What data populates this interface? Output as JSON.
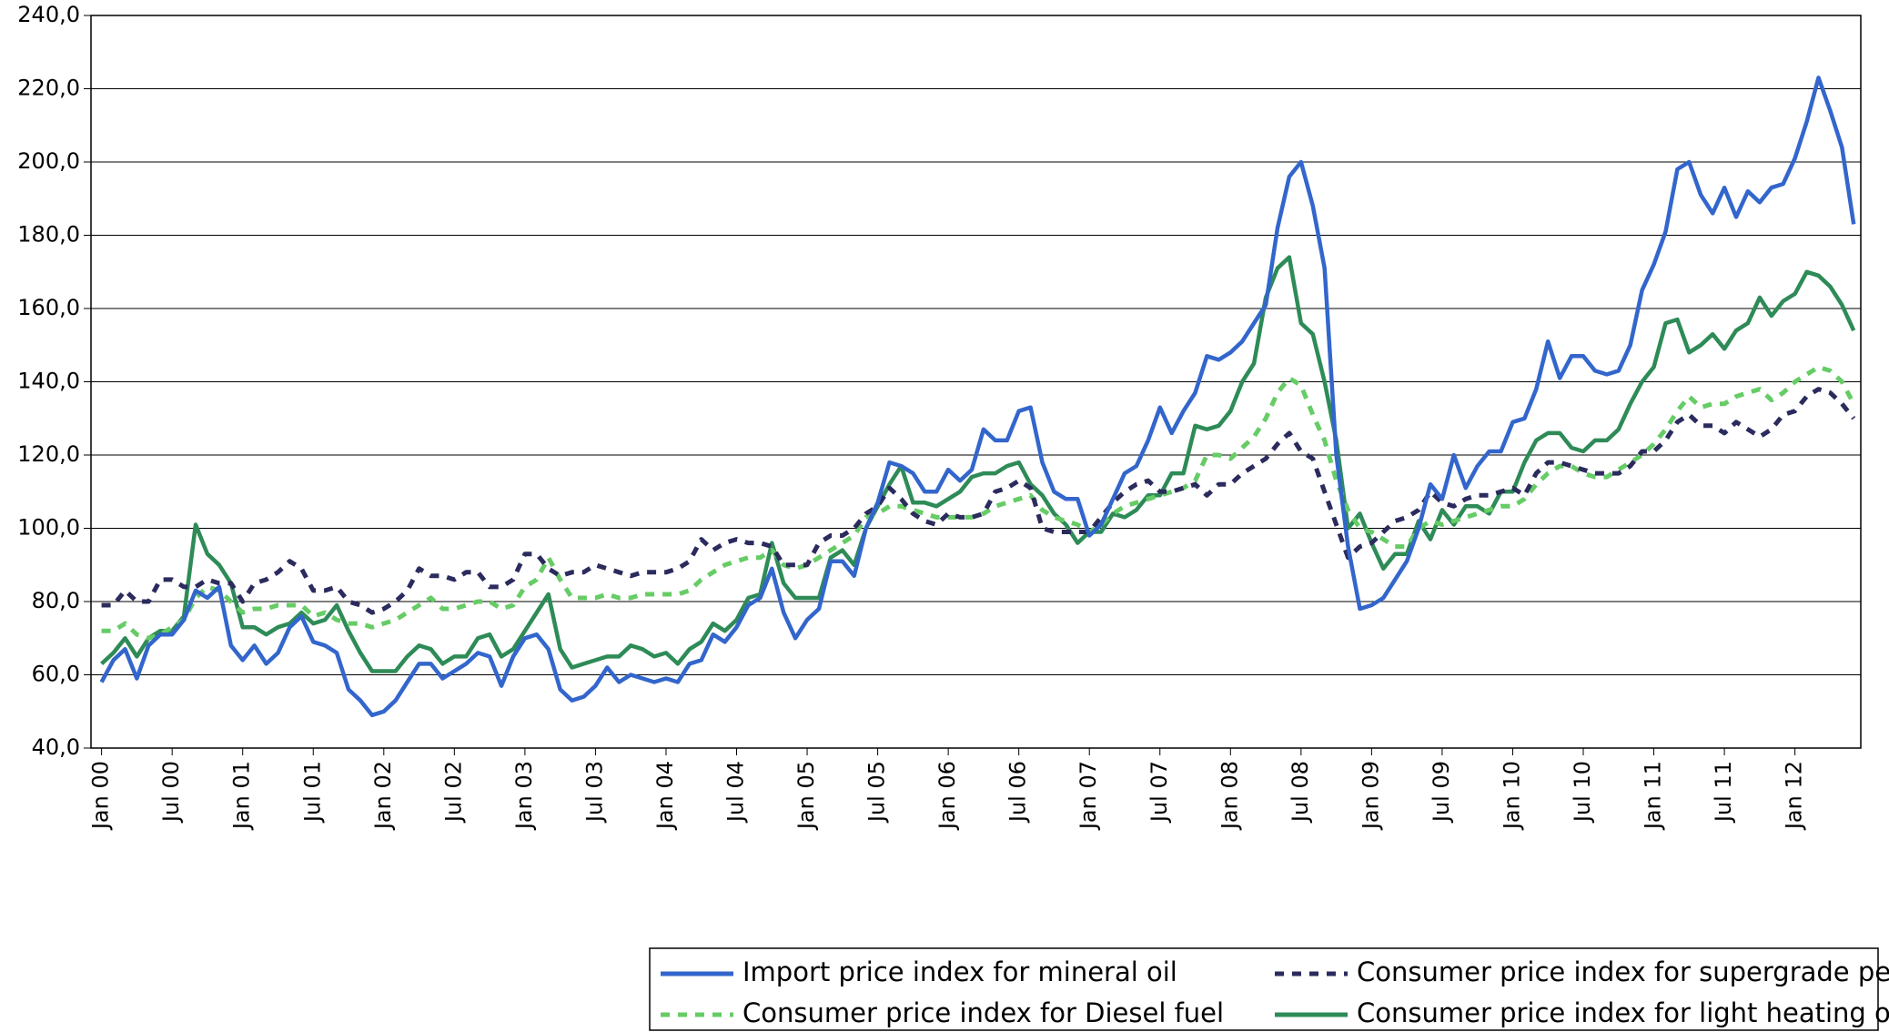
{
  "chart_data": {
    "type": "line",
    "categories": [
      "Jan 00",
      null,
      null,
      null,
      null,
      null,
      "Jul 00",
      null,
      null,
      null,
      null,
      null,
      "Jan 01",
      null,
      null,
      null,
      null,
      null,
      "Jul 01",
      null,
      null,
      null,
      null,
      null,
      "Jan 02",
      null,
      null,
      null,
      null,
      null,
      "Jul 02",
      null,
      null,
      null,
      null,
      null,
      "Jan 03",
      null,
      null,
      null,
      null,
      null,
      "Jul 03",
      null,
      null,
      null,
      null,
      null,
      "Jan 04",
      null,
      null,
      null,
      null,
      null,
      "Jul 04",
      null,
      null,
      null,
      null,
      null,
      "Jan 05",
      null,
      null,
      null,
      null,
      null,
      "Jul 05",
      null,
      null,
      null,
      null,
      null,
      "Jan 06",
      null,
      null,
      null,
      null,
      null,
      "Jul 06",
      null,
      null,
      null,
      null,
      null,
      "Jan 07",
      null,
      null,
      null,
      null,
      null,
      "Jul 07",
      null,
      null,
      null,
      null,
      null,
      "Jan 08",
      null,
      null,
      null,
      null,
      null,
      "Jul 08",
      null,
      null,
      null,
      null,
      null,
      "Jan 09",
      null,
      null,
      null,
      null,
      null,
      "Jul 09",
      null,
      null,
      null,
      null,
      null,
      "Jan 10",
      null,
      null,
      null,
      null,
      null,
      "Jul 10",
      null,
      null,
      null,
      null,
      null,
      "Jan 11",
      null,
      null,
      null,
      null,
      null,
      "Jul 11",
      null,
      null,
      null,
      null,
      null,
      "Jan 12",
      null,
      null,
      null,
      null,
      null
    ],
    "series": [
      {
        "name": "Import price index for mineral oil",
        "color": "#3366cc",
        "style": "solid",
        "values": [
          58,
          64,
          67,
          59,
          68,
          71,
          71,
          75,
          83,
          81,
          84,
          68,
          64,
          68,
          63,
          66,
          73,
          76,
          69,
          68,
          66,
          56,
          53,
          49,
          50,
          53,
          58,
          63,
          63,
          59,
          61,
          63,
          66,
          65,
          57,
          65,
          70,
          71,
          67,
          56,
          53,
          54,
          57,
          62,
          58,
          60,
          59,
          58,
          59,
          58,
          63,
          64,
          71,
          69,
          73,
          79,
          81,
          89,
          77,
          70,
          75,
          78,
          91,
          91,
          87,
          100,
          107,
          118,
          117,
          115,
          110,
          110,
          116,
          113,
          116,
          127,
          124,
          124,
          132,
          133,
          118,
          110,
          108,
          108,
          98,
          101,
          108,
          115,
          117,
          124,
          133,
          126,
          132,
          137,
          147,
          146,
          148,
          151,
          156,
          161,
          182,
          196,
          200,
          188,
          171,
          120,
          95,
          78,
          79,
          81,
          86,
          91,
          100,
          112,
          108,
          120,
          111,
          117,
          121,
          121,
          129,
          130,
          138,
          151,
          141,
          147,
          147,
          143,
          142,
          143,
          150,
          165,
          172,
          181,
          198,
          200,
          191,
          186,
          193,
          185,
          192,
          189,
          193,
          194,
          201,
          211,
          223,
          214,
          204,
          183
        ]
      },
      {
        "name": "Consumer price index for supergrade petrol",
        "color": "#2b2b5e",
        "style": "dashed",
        "values": [
          79,
          79,
          83,
          80,
          80,
          86,
          86,
          84,
          84,
          86,
          85,
          85,
          80,
          85,
          86,
          88,
          91,
          89,
          83,
          83,
          84,
          80,
          79,
          77,
          78,
          80,
          83,
          89,
          87,
          87,
          86,
          88,
          88,
          84,
          84,
          86,
          93,
          93,
          89,
          87,
          88,
          88,
          90,
          89,
          88,
          87,
          88,
          88,
          88,
          89,
          91,
          97,
          94,
          96,
          97,
          96,
          96,
          95,
          90,
          90,
          90,
          96,
          98,
          98,
          100,
          104,
          106,
          111,
          108,
          104,
          102,
          101,
          104,
          103,
          103,
          104,
          110,
          111,
          113,
          111,
          100,
          99,
          99,
          99,
          99,
          103,
          107,
          110,
          112,
          113,
          110,
          110,
          111,
          112,
          109,
          112,
          112,
          115,
          117,
          119,
          123,
          126,
          121,
          119,
          110,
          101,
          92,
          95,
          96,
          99,
          102,
          103,
          105,
          110,
          107,
          106,
          108,
          109,
          109,
          110,
          111,
          109,
          115,
          118,
          118,
          117,
          116,
          115,
          115,
          115,
          117,
          121,
          121,
          124,
          129,
          131,
          128,
          128,
          126,
          129,
          127,
          125,
          127,
          131,
          132,
          136,
          138,
          137,
          134,
          130
        ]
      },
      {
        "name": "Consumer price index for Diesel fuel",
        "color": "#66cc66",
        "style": "dashed",
        "values": [
          72,
          72,
          74,
          71,
          70,
          71,
          73,
          75,
          81,
          84,
          83,
          80,
          77,
          78,
          78,
          79,
          79,
          79,
          76,
          77,
          75,
          74,
          74,
          73,
          74,
          75,
          77,
          79,
          81,
          78,
          78,
          79,
          80,
          80,
          78,
          79,
          84,
          86,
          92,
          86,
          81,
          81,
          81,
          82,
          81,
          81,
          82,
          82,
          82,
          82,
          83,
          86,
          88,
          90,
          91,
          92,
          92,
          94,
          90,
          89,
          90,
          92,
          94,
          96,
          98,
          103,
          104,
          106,
          106,
          105,
          104,
          103,
          103,
          103,
          103,
          104,
          106,
          107,
          108,
          109,
          105,
          103,
          102,
          101,
          99,
          101,
          104,
          106,
          107,
          108,
          109,
          110,
          111,
          113,
          120,
          120,
          119,
          122,
          125,
          130,
          137,
          141,
          139,
          131,
          124,
          113,
          105,
          100,
          99,
          97,
          95,
          95,
          100,
          102,
          101,
          102,
          103,
          104,
          105,
          106,
          106,
          108,
          112,
          115,
          117,
          117,
          115,
          114,
          114,
          116,
          118,
          120,
          123,
          127,
          132,
          136,
          133,
          134,
          134,
          136,
          137,
          138,
          135,
          137,
          140,
          142,
          144,
          143,
          140,
          134
        ]
      },
      {
        "name": "Consumer price index for light heating oil",
        "color": "#2e8b57",
        "style": "solid",
        "values": [
          63,
          66,
          70,
          65,
          70,
          72,
          72,
          76,
          101,
          93,
          90,
          85,
          73,
          73,
          71,
          73,
          74,
          77,
          74,
          75,
          79,
          72,
          66,
          61,
          61,
          61,
          65,
          68,
          67,
          63,
          65,
          65,
          70,
          71,
          65,
          67,
          72,
          77,
          82,
          67,
          62,
          63,
          64,
          65,
          65,
          68,
          67,
          65,
          66,
          63,
          67,
          69,
          74,
          72,
          75,
          81,
          82,
          96,
          85,
          81,
          81,
          81,
          92,
          94,
          90,
          100,
          106,
          112,
          117,
          107,
          107,
          106,
          108,
          110,
          114,
          115,
          115,
          117,
          118,
          112,
          109,
          104,
          101,
          96,
          99,
          99,
          104,
          103,
          105,
          109,
          109,
          115,
          115,
          128,
          127,
          128,
          132,
          140,
          145,
          163,
          171,
          174,
          156,
          153,
          140,
          124,
          100,
          104,
          96,
          89,
          93,
          93,
          102,
          97,
          105,
          101,
          106,
          106,
          104,
          110,
          110,
          118,
          124,
          126,
          126,
          122,
          121,
          124,
          124,
          127,
          134,
          140,
          144,
          156,
          157,
          148,
          150,
          153,
          149,
          154,
          156,
          163,
          158,
          162,
          164,
          170,
          169,
          166,
          161,
          154
        ]
      }
    ],
    "ylim": [
      40,
      240
    ],
    "yticks": [
      {
        "value": 40,
        "label": "40,0"
      },
      {
        "value": 60,
        "label": "60,0"
      },
      {
        "value": 80,
        "label": "80,0"
      },
      {
        "value": 100,
        "label": "100,0"
      },
      {
        "value": 120,
        "label": "120,0"
      },
      {
        "value": 140,
        "label": "140,0"
      },
      {
        "value": 160,
        "label": "160,0"
      },
      {
        "value": 180,
        "label": "180,0"
      },
      {
        "value": 200,
        "label": "200,0"
      },
      {
        "value": 220,
        "label": "220,0"
      },
      {
        "value": 240,
        "label": "240,0"
      }
    ],
    "grid": true
  }
}
